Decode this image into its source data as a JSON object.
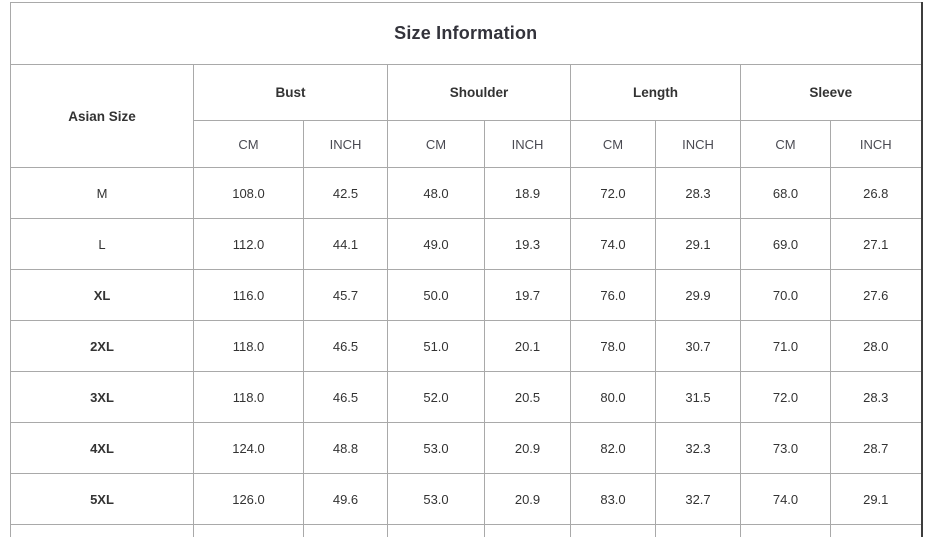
{
  "title": "Size Information",
  "table": {
    "size_column_header": "Asian Size",
    "group_headers": [
      "Bust",
      "Shoulder",
      "Length",
      "Sleeve"
    ],
    "unit_headers": [
      "CM",
      "INCH"
    ],
    "rows": [
      {
        "size": "M",
        "bold": false,
        "values": [
          "108.0",
          "42.5",
          "48.0",
          "18.9",
          "72.0",
          "28.3",
          "68.0",
          "26.8"
        ]
      },
      {
        "size": "L",
        "bold": false,
        "values": [
          "112.0",
          "44.1",
          "49.0",
          "19.3",
          "74.0",
          "29.1",
          "69.0",
          "27.1"
        ]
      },
      {
        "size": "XL",
        "bold": true,
        "values": [
          "116.0",
          "45.7",
          "50.0",
          "19.7",
          "76.0",
          "29.9",
          "70.0",
          "27.6"
        ]
      },
      {
        "size": "2XL",
        "bold": true,
        "values": [
          "118.0",
          "46.5",
          "51.0",
          "20.1",
          "78.0",
          "30.7",
          "71.0",
          "28.0"
        ]
      },
      {
        "size": "3XL",
        "bold": true,
        "values": [
          "118.0",
          "46.5",
          "52.0",
          "20.5",
          "80.0",
          "31.5",
          "72.0",
          "28.3"
        ]
      },
      {
        "size": "4XL",
        "bold": true,
        "values": [
          "124.0",
          "48.8",
          "53.0",
          "20.9",
          "82.0",
          "32.3",
          "73.0",
          "28.7"
        ]
      },
      {
        "size": "5XL",
        "bold": true,
        "values": [
          "126.0",
          "49.6",
          "53.0",
          "20.9",
          "83.0",
          "32.7",
          "74.0",
          "29.1"
        ]
      }
    ]
  },
  "colors": {
    "background": "#ffffff",
    "text": "#333333",
    "unit_text": "#4a4a52",
    "border_inner": "#a9a9a9",
    "border_outer": "#7d7d7d",
    "border_right": "#3d3d3d"
  },
  "chart_data": {
    "type": "table",
    "title": "Size Information",
    "columns": [
      "Asian Size",
      "Bust CM",
      "Bust INCH",
      "Shoulder CM",
      "Shoulder INCH",
      "Length CM",
      "Length INCH",
      "Sleeve CM",
      "Sleeve INCH"
    ],
    "rows": [
      [
        "M",
        108.0,
        42.5,
        48.0,
        18.9,
        72.0,
        28.3,
        68.0,
        26.8
      ],
      [
        "L",
        112.0,
        44.1,
        49.0,
        19.3,
        74.0,
        29.1,
        69.0,
        27.1
      ],
      [
        "XL",
        116.0,
        45.7,
        50.0,
        19.7,
        76.0,
        29.9,
        70.0,
        27.6
      ],
      [
        "2XL",
        118.0,
        46.5,
        51.0,
        20.1,
        78.0,
        30.7,
        71.0,
        28.0
      ],
      [
        "3XL",
        118.0,
        46.5,
        52.0,
        20.5,
        80.0,
        31.5,
        72.0,
        28.3
      ],
      [
        "4XL",
        124.0,
        48.8,
        53.0,
        20.9,
        82.0,
        32.3,
        73.0,
        28.7
      ],
      [
        "5XL",
        126.0,
        49.6,
        53.0,
        20.9,
        83.0,
        32.7,
        74.0,
        29.1
      ]
    ]
  }
}
